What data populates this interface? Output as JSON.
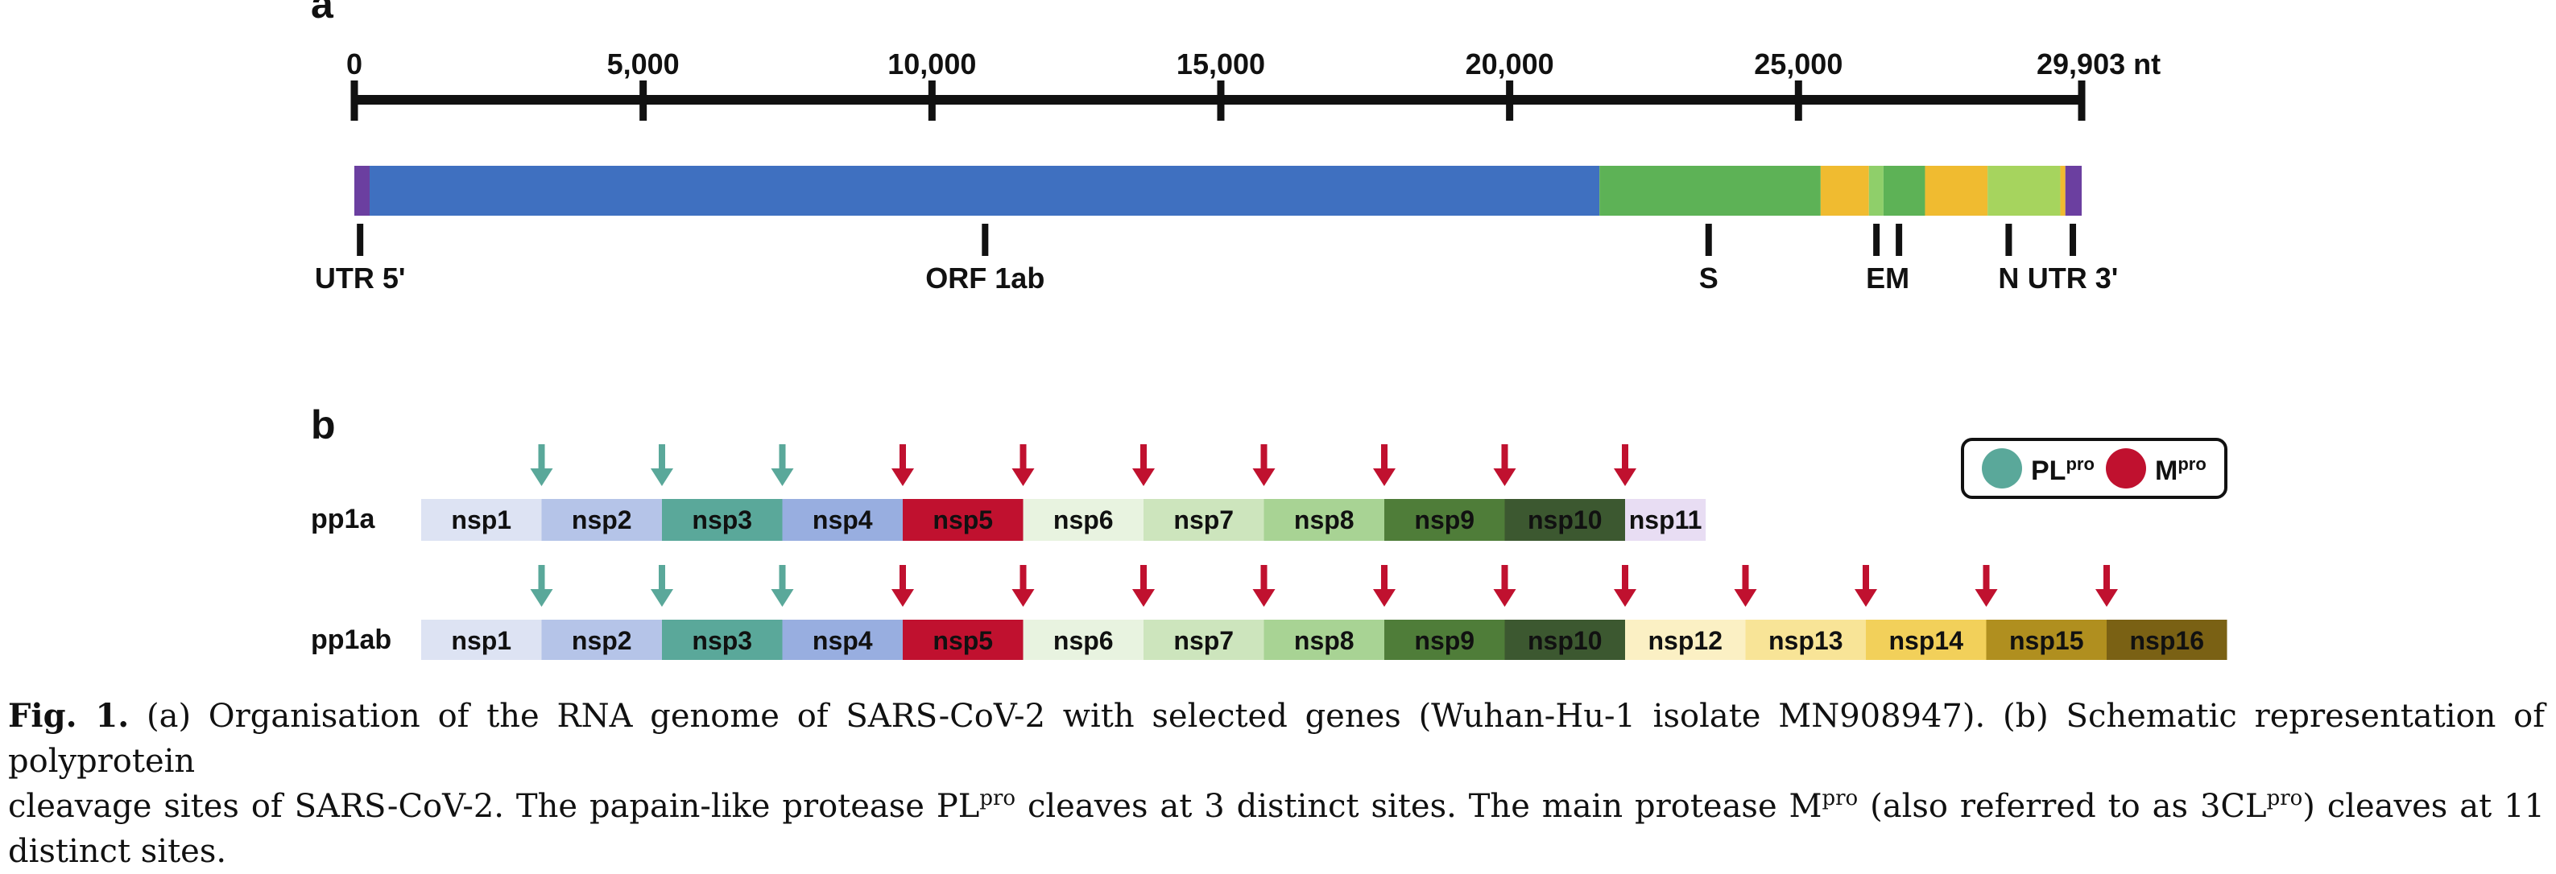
{
  "panel_a": {
    "label": "a",
    "ruler": {
      "ticks": [
        {
          "value": 0,
          "label": "0"
        },
        {
          "value": 5000,
          "label": "5,000"
        },
        {
          "value": 10000,
          "label": "10,000"
        },
        {
          "value": 15000,
          "label": "15,000"
        },
        {
          "value": 20000,
          "label": "20,000"
        },
        {
          "value": 25000,
          "label": "25,000"
        },
        {
          "value": 29903,
          "label": "29,903 nt"
        }
      ],
      "max_nt": 29903
    },
    "genome_segments": [
      {
        "start": 0,
        "end": 265,
        "color": "#6b3fa0"
      },
      {
        "start": 265,
        "end": 21555,
        "color": "#3f70c0"
      },
      {
        "start": 21555,
        "end": 25384,
        "color": "#5db256"
      },
      {
        "start": 25384,
        "end": 26220,
        "color": "#f0bb30"
      },
      {
        "start": 26220,
        "end": 26472,
        "color": "#8fcf6a"
      },
      {
        "start": 26472,
        "end": 27191,
        "color": "#5db256"
      },
      {
        "start": 27191,
        "end": 28274,
        "color": "#f0bb30"
      },
      {
        "start": 28274,
        "end": 29533,
        "color": "#a6d45e"
      },
      {
        "start": 29533,
        "end": 29620,
        "color": "#f0bb30"
      },
      {
        "start": 29620,
        "end": 29903,
        "color": "#6b3fa0"
      }
    ],
    "gene_labels": [
      {
        "label": "UTR 5'",
        "pos": 100
      },
      {
        "label": "ORF 1ab",
        "pos": 10920
      },
      {
        "label": "S",
        "pos": 23445
      },
      {
        "label": "EM",
        "pos": 26350,
        "extra_tick": 26740
      },
      {
        "label": "N",
        "pos": 28640
      },
      {
        "label": "UTR 3'",
        "pos": 29750
      }
    ]
  },
  "panel_b": {
    "label": "b",
    "legend": {
      "plpro": "PL",
      "plpro_sup": "pro",
      "mpro": "M",
      "mpro_sup": "pro",
      "plpro_color": "#5aa89a",
      "mpro_color": "#c0112f"
    },
    "rows": [
      {
        "name": "pp1a",
        "segments": [
          {
            "label": "nsp1",
            "color": "#dde3f3"
          },
          {
            "label": "nsp2",
            "color": "#b5c4e8"
          },
          {
            "label": "nsp3",
            "color": "#5aa89a"
          },
          {
            "label": "nsp4",
            "color": "#98aee0"
          },
          {
            "label": "nsp5",
            "color": "#c0112f"
          },
          {
            "label": "nsp6",
            "color": "#e8f3e0"
          },
          {
            "label": "nsp7",
            "color": "#cde5bd"
          },
          {
            "label": "nsp8",
            "color": "#a8d394"
          },
          {
            "label": "nsp9",
            "color": "#4f7d39"
          },
          {
            "label": "nsp10",
            "color": "#3c5830"
          },
          {
            "label": "nsp11",
            "color": "#e8ddf3",
            "half": true
          }
        ],
        "arrows": [
          "plpro",
          "plpro",
          "plpro",
          "mpro",
          "mpro",
          "mpro",
          "mpro",
          "mpro",
          "mpro",
          "mpro"
        ]
      },
      {
        "name": "pp1ab",
        "segments": [
          {
            "label": "nsp1",
            "color": "#dde3f3"
          },
          {
            "label": "nsp2",
            "color": "#b5c4e8"
          },
          {
            "label": "nsp3",
            "color": "#5aa89a"
          },
          {
            "label": "nsp4",
            "color": "#98aee0"
          },
          {
            "label": "nsp5",
            "color": "#c0112f"
          },
          {
            "label": "nsp6",
            "color": "#e8f3e0"
          },
          {
            "label": "nsp7",
            "color": "#cde5bd"
          },
          {
            "label": "nsp8",
            "color": "#a8d394"
          },
          {
            "label": "nsp9",
            "color": "#4f7d39"
          },
          {
            "label": "nsp10",
            "color": "#3c5830"
          },
          {
            "label": "nsp12",
            "color": "#fbf0c4"
          },
          {
            "label": "nsp13",
            "color": "#f8e497"
          },
          {
            "label": "nsp14",
            "color": "#f2d05a"
          },
          {
            "label": "nsp15",
            "color": "#b08f1f"
          },
          {
            "label": "nsp16",
            "color": "#7a6114"
          }
        ],
        "arrows": [
          "plpro",
          "plpro",
          "plpro",
          "mpro",
          "mpro",
          "mpro",
          "mpro",
          "mpro",
          "mpro",
          "mpro",
          "mpro",
          "mpro",
          "mpro",
          "mpro"
        ]
      }
    ]
  },
  "caption": {
    "fig_label": "Fig. 1.",
    "line1": "(a) Organisation of the RNA genome of SARS-CoV-2 with selected genes (Wuhan-Hu-1 isolate MN908947). (b) Schematic representation of polyprotein",
    "line2_part1": "cleavage sites of SARS-CoV-2. The papain-like protease PL",
    "sup1": "pro",
    "line2_part2": " cleaves at 3 distinct sites. The main protease M",
    "sup2": "pro",
    "line2_part3": " (also referred to as 3CL",
    "sup3": "pro",
    "line2_part4": ") cleaves at 11 distinct sites."
  }
}
